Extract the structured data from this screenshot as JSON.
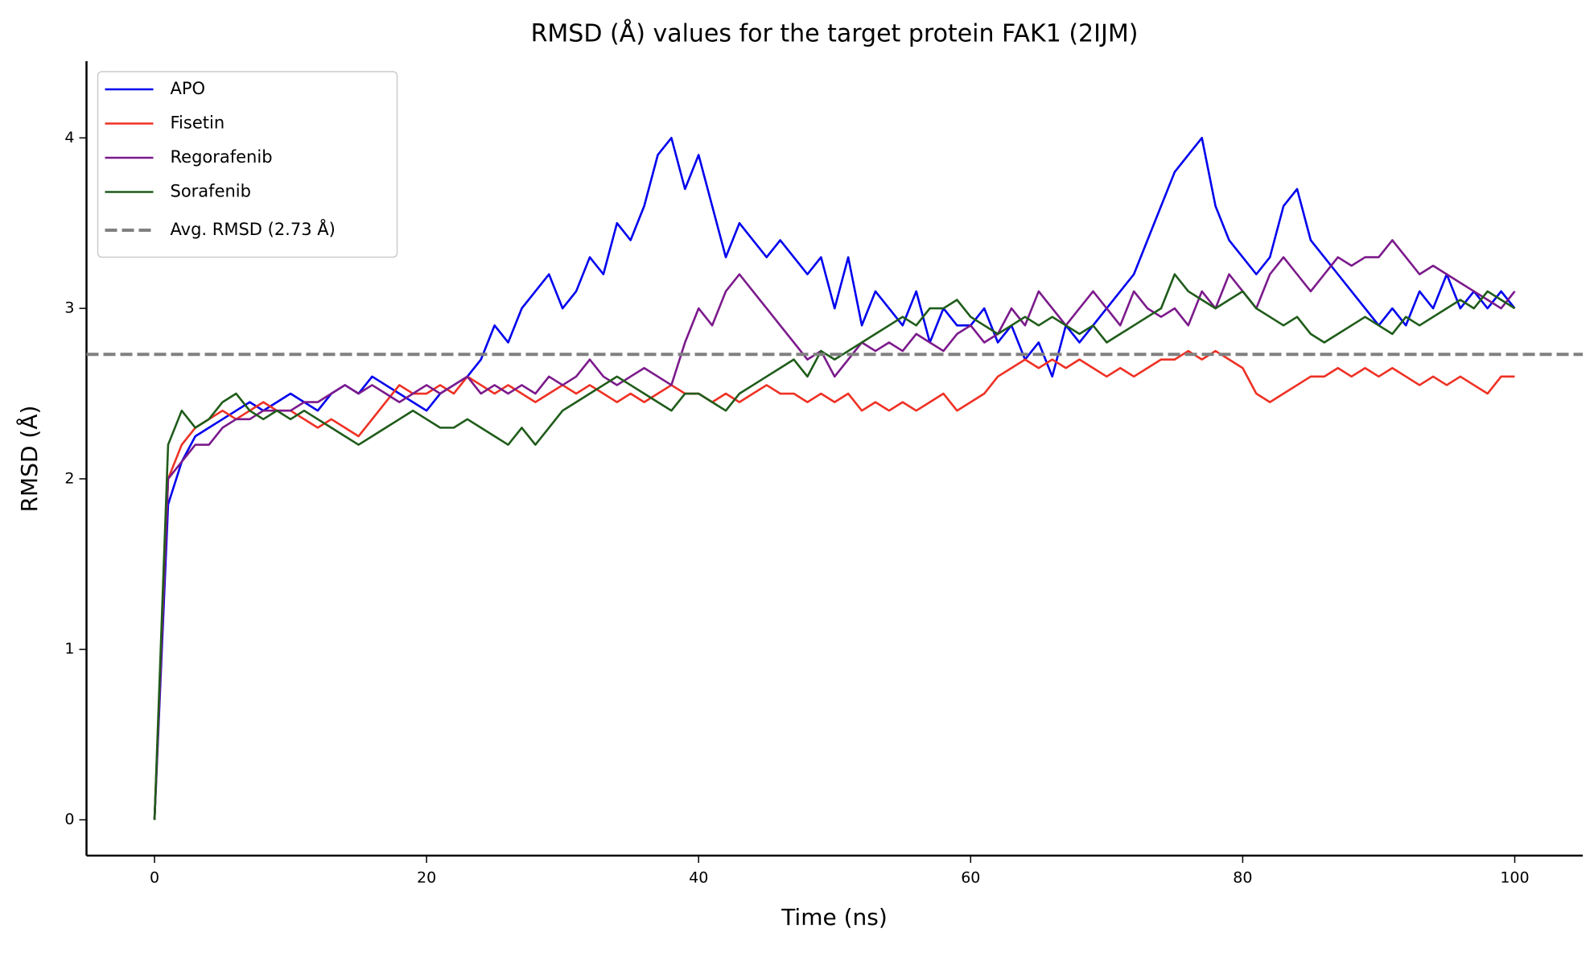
{
  "chart_data": {
    "type": "line",
    "title": "RMSD (Å) values for the target protein FAK1 (2IJM)",
    "x_label": "Time (ns)",
    "y_label": "RMSD (Å)",
    "x": [
      0,
      1,
      2,
      3,
      4,
      5,
      6,
      7,
      8,
      9,
      10,
      11,
      12,
      13,
      14,
      15,
      16,
      17,
      18,
      19,
      20,
      21,
      22,
      23,
      24,
      25,
      26,
      27,
      28,
      29,
      30,
      31,
      32,
      33,
      34,
      35,
      36,
      37,
      38,
      39,
      40,
      41,
      42,
      43,
      44,
      45,
      46,
      47,
      48,
      49,
      50,
      51,
      52,
      53,
      54,
      55,
      56,
      57,
      58,
      59,
      60,
      61,
      62,
      63,
      64,
      65,
      66,
      67,
      68,
      69,
      70,
      71,
      72,
      73,
      74,
      75,
      76,
      77,
      78,
      79,
      80,
      81,
      82,
      83,
      84,
      85,
      86,
      87,
      88,
      89,
      90,
      91,
      92,
      93,
      94,
      95,
      96,
      97,
      98,
      99,
      100
    ],
    "series": [
      {
        "name": "APO",
        "color": "#0000ee",
        "values": [
          0,
          1.85,
          2.1,
          2.25,
          2.3,
          2.35,
          2.4,
          2.45,
          2.4,
          2.45,
          2.5,
          2.45,
          2.4,
          2.5,
          2.55,
          2.5,
          2.6,
          2.55,
          2.5,
          2.45,
          2.4,
          2.5,
          2.55,
          2.6,
          2.7,
          2.9,
          2.8,
          3.0,
          3.1,
          3.2,
          3.0,
          3.1,
          3.3,
          3.2,
          3.5,
          3.4,
          3.6,
          3.9,
          4.0,
          3.7,
          3.9,
          3.6,
          3.3,
          3.5,
          3.4,
          3.3,
          3.4,
          3.3,
          3.2,
          3.3,
          3.0,
          3.3,
          2.9,
          3.1,
          3.0,
          2.9,
          3.1,
          2.8,
          3.0,
          2.9,
          2.9,
          3.0,
          2.8,
          2.9,
          2.7,
          2.8,
          2.6,
          2.9,
          2.8,
          2.9,
          3.0,
          3.1,
          3.2,
          3.4,
          3.6,
          3.8,
          3.9,
          4.0,
          3.6,
          3.4,
          3.3,
          3.2,
          3.3,
          3.6,
          3.7,
          3.4,
          3.3,
          3.2,
          3.1,
          3.0,
          2.9,
          3.0,
          2.9,
          3.1,
          3.0,
          3.2,
          3.0,
          3.1,
          3.0,
          3.1,
          3.0
        ]
      },
      {
        "name": "Fisetin",
        "color": "#ee3124",
        "values": [
          0,
          2.0,
          2.2,
          2.3,
          2.35,
          2.4,
          2.35,
          2.4,
          2.45,
          2.4,
          2.4,
          2.35,
          2.3,
          2.35,
          2.3,
          2.25,
          2.35,
          2.45,
          2.55,
          2.5,
          2.5,
          2.55,
          2.5,
          2.6,
          2.55,
          2.5,
          2.55,
          2.5,
          2.45,
          2.5,
          2.55,
          2.5,
          2.55,
          2.5,
          2.45,
          2.5,
          2.45,
          2.5,
          2.55,
          2.5,
          2.5,
          2.45,
          2.5,
          2.45,
          2.5,
          2.55,
          2.5,
          2.5,
          2.45,
          2.5,
          2.45,
          2.5,
          2.4,
          2.45,
          2.4,
          2.45,
          2.4,
          2.45,
          2.5,
          2.4,
          2.45,
          2.5,
          2.6,
          2.65,
          2.7,
          2.65,
          2.7,
          2.65,
          2.7,
          2.65,
          2.6,
          2.65,
          2.6,
          2.65,
          2.7,
          2.7,
          2.75,
          2.7,
          2.75,
          2.7,
          2.65,
          2.5,
          2.45,
          2.5,
          2.55,
          2.6,
          2.6,
          2.65,
          2.6,
          2.65,
          2.6,
          2.65,
          2.6,
          2.55,
          2.6,
          2.55,
          2.6,
          2.55,
          2.5,
          2.6,
          2.6
        ]
      },
      {
        "name": "Regorafenib",
        "color": "#7b1a8b",
        "values": [
          0,
          2.0,
          2.1,
          2.2,
          2.2,
          2.3,
          2.35,
          2.35,
          2.4,
          2.4,
          2.4,
          2.45,
          2.45,
          2.5,
          2.55,
          2.5,
          2.55,
          2.5,
          2.45,
          2.5,
          2.55,
          2.5,
          2.55,
          2.6,
          2.5,
          2.55,
          2.5,
          2.55,
          2.5,
          2.6,
          2.55,
          2.6,
          2.7,
          2.6,
          2.55,
          2.6,
          2.65,
          2.6,
          2.55,
          2.8,
          3.0,
          2.9,
          3.1,
          3.2,
          3.1,
          3.0,
          2.9,
          2.8,
          2.7,
          2.75,
          2.6,
          2.7,
          2.8,
          2.75,
          2.8,
          2.75,
          2.85,
          2.8,
          2.75,
          2.85,
          2.9,
          2.8,
          2.85,
          3.0,
          2.9,
          3.1,
          3.0,
          2.9,
          3.0,
          3.1,
          3.0,
          2.9,
          3.1,
          3.0,
          2.95,
          3.0,
          2.9,
          3.1,
          3.0,
          3.2,
          3.1,
          3.0,
          3.2,
          3.3,
          3.2,
          3.1,
          3.2,
          3.3,
          3.25,
          3.3,
          3.3,
          3.4,
          3.3,
          3.2,
          3.25,
          3.2,
          3.15,
          3.1,
          3.05,
          3.0,
          3.1
        ]
      },
      {
        "name": "Sorafenib",
        "color": "#1f5c1a",
        "values": [
          0,
          2.2,
          2.4,
          2.3,
          2.35,
          2.45,
          2.5,
          2.4,
          2.35,
          2.4,
          2.35,
          2.4,
          2.35,
          2.3,
          2.25,
          2.2,
          2.25,
          2.3,
          2.35,
          2.4,
          2.35,
          2.3,
          2.3,
          2.35,
          2.3,
          2.25,
          2.2,
          2.3,
          2.2,
          2.3,
          2.4,
          2.45,
          2.5,
          2.55,
          2.6,
          2.55,
          2.5,
          2.45,
          2.4,
          2.5,
          2.5,
          2.45,
          2.4,
          2.5,
          2.55,
          2.6,
          2.65,
          2.7,
          2.6,
          2.75,
          2.7,
          2.75,
          2.8,
          2.85,
          2.9,
          2.95,
          2.9,
          3.0,
          3.0,
          3.05,
          2.95,
          2.9,
          2.85,
          2.9,
          2.95,
          2.9,
          2.95,
          2.9,
          2.85,
          2.9,
          2.8,
          2.85,
          2.9,
          2.95,
          3.0,
          3.2,
          3.1,
          3.05,
          3.0,
          3.05,
          3.1,
          3.0,
          2.95,
          2.9,
          2.95,
          2.85,
          2.8,
          2.85,
          2.9,
          2.95,
          2.9,
          2.85,
          2.95,
          2.9,
          2.95,
          3.0,
          3.05,
          3.0,
          3.1,
          3.05,
          3.0
        ]
      }
    ],
    "reference_lines": [
      {
        "value": 2.73,
        "label": "Avg. RMSD (2.73 Å)",
        "color": "#808080",
        "style": "dashed"
      }
    ],
    "xlim": [
      -5,
      105
    ],
    "ylim": [
      -0.21,
      4.45
    ],
    "xticks": [
      0,
      20,
      40,
      60,
      80,
      100
    ],
    "yticks": [
      0,
      1,
      2,
      3,
      4
    ],
    "grid": false,
    "legend": "upper left"
  }
}
